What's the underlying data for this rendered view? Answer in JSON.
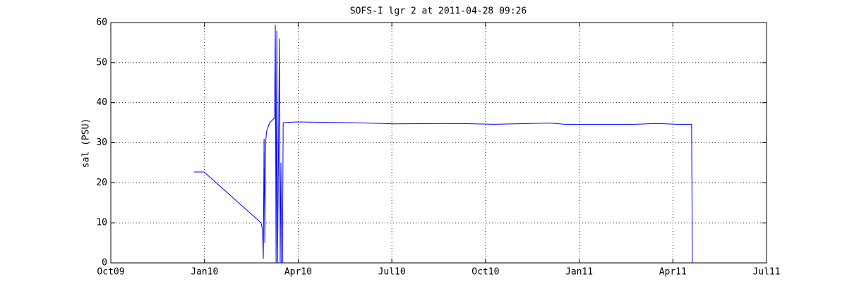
{
  "chart_data": {
    "type": "line",
    "title": "SOFS-I lgr 2 at 2011-04-28 09:26",
    "ylabel": "sal (PSU)",
    "x": [
      2009.972,
      2009.999,
      2010.151,
      2010.155,
      2010.157,
      2010.159,
      2010.161,
      2010.163,
      2010.166,
      2010.174,
      2010.185,
      2010.187,
      2010.189,
      2010.191,
      2010.193,
      2010.195,
      2010.2,
      2010.202,
      2010.204,
      2010.206,
      2010.208,
      2010.21,
      2010.245,
      2010.396,
      2010.509,
      2010.679,
      2010.773,
      2010.923,
      2010.961,
      2011.149,
      2011.206,
      2011.263,
      2011.3,
      2011.302
    ],
    "values": [
      22.7,
      22.7,
      10,
      8,
      1,
      31,
      5,
      30,
      33,
      35,
      36,
      36,
      59.5,
      0,
      58,
      0,
      56,
      0,
      25,
      0,
      0,
      35,
      35.2,
      35,
      34.7,
      34.8,
      34.6,
      34.9,
      34.6,
      34.6,
      34.8,
      34.6,
      34.6,
      0
    ],
    "color": "#0000ff",
    "xlim": [
      2009.75,
      2011.5
    ],
    "ylim": [
      0,
      60
    ],
    "xticks": [
      {
        "value": 2009.75,
        "label": "Oct09"
      },
      {
        "value": 2010.0,
        "label": "Jan10"
      },
      {
        "value": 2010.25,
        "label": "Apr10"
      },
      {
        "value": 2010.5,
        "label": "Jul10"
      },
      {
        "value": 2010.75,
        "label": "Oct10"
      },
      {
        "value": 2011.0,
        "label": "Jan11"
      },
      {
        "value": 2011.25,
        "label": "Apr11"
      },
      {
        "value": 2011.5,
        "label": "Jul11"
      }
    ],
    "yticks": [
      0,
      10,
      20,
      30,
      40,
      50,
      60
    ],
    "grid": true
  }
}
